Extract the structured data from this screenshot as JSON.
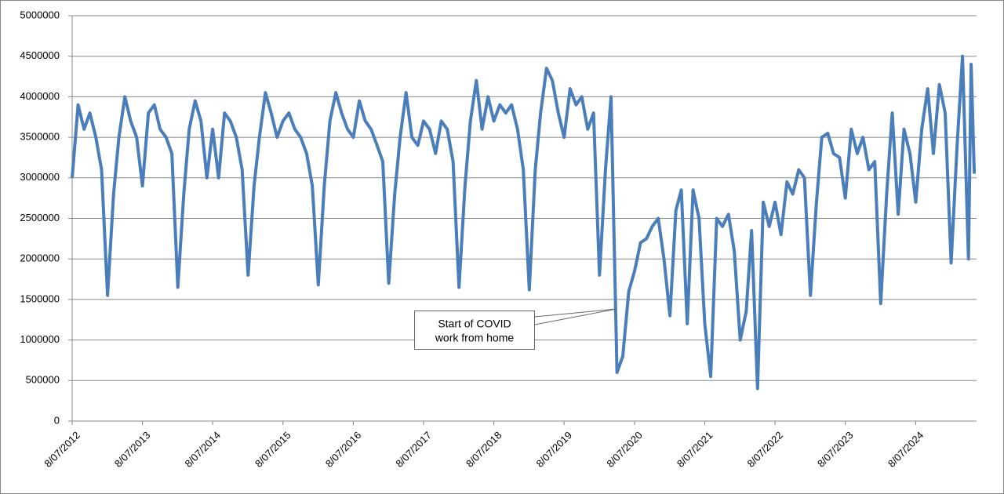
{
  "chart_data": {
    "type": "line",
    "x": [
      "2012-07-08",
      "2012-08-08",
      "2012-09-08",
      "2012-10-08",
      "2012-11-08",
      "2012-12-08",
      "2013-01-08",
      "2013-02-08",
      "2013-03-08",
      "2013-04-08",
      "2013-05-08",
      "2013-06-08",
      "2013-07-08",
      "2013-08-08",
      "2013-09-08",
      "2013-10-08",
      "2013-11-08",
      "2013-12-08",
      "2014-01-08",
      "2014-02-08",
      "2014-03-08",
      "2014-04-08",
      "2014-05-08",
      "2014-06-08",
      "2014-07-08",
      "2014-08-08",
      "2014-09-08",
      "2014-10-08",
      "2014-11-08",
      "2014-12-08",
      "2015-01-08",
      "2015-02-08",
      "2015-03-08",
      "2015-04-08",
      "2015-05-08",
      "2015-06-08",
      "2015-07-08",
      "2015-08-08",
      "2015-09-08",
      "2015-10-08",
      "2015-11-08",
      "2015-12-08",
      "2016-01-08",
      "2016-02-08",
      "2016-03-08",
      "2016-04-08",
      "2016-05-08",
      "2016-06-08",
      "2016-07-08",
      "2016-08-08",
      "2016-09-08",
      "2016-10-08",
      "2016-11-08",
      "2016-12-08",
      "2017-01-08",
      "2017-02-08",
      "2017-03-08",
      "2017-04-08",
      "2017-05-08",
      "2017-06-08",
      "2017-07-08",
      "2017-08-08",
      "2017-09-08",
      "2017-10-08",
      "2017-11-08",
      "2017-12-08",
      "2018-01-08",
      "2018-02-08",
      "2018-03-08",
      "2018-04-08",
      "2018-05-08",
      "2018-06-08",
      "2018-07-08",
      "2018-08-08",
      "2018-09-08",
      "2018-10-08",
      "2018-11-08",
      "2018-12-08",
      "2019-01-08",
      "2019-02-08",
      "2019-03-08",
      "2019-04-08",
      "2019-05-08",
      "2019-06-08",
      "2019-07-08",
      "2019-08-08",
      "2019-09-08",
      "2019-10-08",
      "2019-11-08",
      "2019-12-08",
      "2020-01-08",
      "2020-02-08",
      "2020-03-08",
      "2020-04-08",
      "2020-05-08",
      "2020-06-08",
      "2020-07-08",
      "2020-08-08",
      "2020-09-08",
      "2020-10-08",
      "2020-11-08",
      "2020-12-08",
      "2021-01-08",
      "2021-02-08",
      "2021-03-08",
      "2021-04-08",
      "2021-05-08",
      "2021-06-08",
      "2021-07-08",
      "2021-08-08",
      "2021-09-08",
      "2021-10-08",
      "2021-11-08",
      "2021-12-08",
      "2022-01-08",
      "2022-02-08",
      "2022-03-08",
      "2022-04-08",
      "2022-05-08",
      "2022-06-08",
      "2022-07-08",
      "2022-08-08",
      "2022-09-08",
      "2022-10-08",
      "2022-11-08",
      "2022-12-08",
      "2023-01-08",
      "2023-02-08",
      "2023-03-08",
      "2023-04-08",
      "2023-05-08",
      "2023-06-08",
      "2023-07-08",
      "2023-08-08",
      "2023-09-08",
      "2023-10-08",
      "2023-11-08",
      "2023-12-08",
      "2024-01-08",
      "2024-02-08",
      "2024-03-08",
      "2024-04-08",
      "2024-05-08",
      "2024-06-08",
      "2024-07-08",
      "2024-08-08",
      "2024-09-08",
      "2024-10-08",
      "2024-11-08",
      "2024-12-08",
      "2025-01-08",
      "2025-02-08",
      "2025-03-08",
      "2025-04-08",
      "2025-04-22",
      "2025-05-08"
    ],
    "series": [
      {
        "color": "#4a7ebb",
        "values": [
          3000000,
          3900000,
          3600000,
          3800000,
          3500000,
          3100000,
          1550000,
          2800000,
          3500000,
          4000000,
          3700000,
          3500000,
          2900000,
          3800000,
          3900000,
          3600000,
          3500000,
          3300000,
          1650000,
          2800000,
          3600000,
          3950000,
          3700000,
          3000000,
          3600000,
          3000000,
          3800000,
          3700000,
          3500000,
          3100000,
          1800000,
          2900000,
          3500000,
          4050000,
          3800000,
          3500000,
          3700000,
          3800000,
          3600000,
          3500000,
          3300000,
          2900000,
          1680000,
          2900000,
          3700000,
          4050000,
          3800000,
          3600000,
          3500000,
          3950000,
          3700000,
          3600000,
          3400000,
          3200000,
          1700000,
          2800000,
          3500000,
          4050000,
          3500000,
          3400000,
          3700000,
          3600000,
          3300000,
          3700000,
          3600000,
          3200000,
          1650000,
          2900000,
          3700000,
          4200000,
          3600000,
          4000000,
          3700000,
          3900000,
          3800000,
          3900000,
          3600000,
          3100000,
          1620000,
          3100000,
          3800000,
          4350000,
          4200000,
          3800000,
          3500000,
          4100000,
          3900000,
          4000000,
          3600000,
          3800000,
          1800000,
          3100000,
          4000000,
          600000,
          800000,
          1600000,
          1850000,
          2200000,
          2250000,
          2400000,
          2500000,
          2000000,
          1300000,
          2600000,
          2850000,
          1200000,
          2850000,
          2500000,
          1200000,
          550000,
          2500000,
          2400000,
          2550000,
          2100000,
          1000000,
          1350000,
          2350000,
          400000,
          2700000,
          2400000,
          2700000,
          2300000,
          2950000,
          2800000,
          3100000,
          3000000,
          1550000,
          2700000,
          3500000,
          3550000,
          3300000,
          3250000,
          2750000,
          3600000,
          3300000,
          3500000,
          3100000,
          3200000,
          1450000,
          2800000,
          3800000,
          2550000,
          3600000,
          3300000,
          2700000,
          3600000,
          4100000,
          3300000,
          4150000,
          3800000,
          1950000,
          3400000,
          4500000,
          2000000,
          4400000,
          3050000
        ]
      }
    ],
    "xlim": [
      "2012-07-08",
      "2025-05-20"
    ],
    "xticks": [
      {
        "value": "2012-07-08",
        "label": "8/07/2012"
      },
      {
        "value": "2013-07-08",
        "label": "8/07/2013"
      },
      {
        "value": "2014-07-08",
        "label": "8/07/2014"
      },
      {
        "value": "2015-07-08",
        "label": "8/07/2015"
      },
      {
        "value": "2016-07-08",
        "label": "8/07/2016"
      },
      {
        "value": "2017-07-08",
        "label": "8/07/2017"
      },
      {
        "value": "2018-07-08",
        "label": "8/07/2018"
      },
      {
        "value": "2019-07-08",
        "label": "8/07/2019"
      },
      {
        "value": "2020-07-08",
        "label": "8/07/2020"
      },
      {
        "value": "2021-07-08",
        "label": "8/07/2021"
      },
      {
        "value": "2022-07-08",
        "label": "8/07/2022"
      },
      {
        "value": "2023-07-08",
        "label": "8/07/2023"
      },
      {
        "value": "2024-07-08",
        "label": "8/07/2024"
      }
    ],
    "ylim": [
      0,
      5000000
    ],
    "yticks": [
      0,
      500000,
      1000000,
      1500000,
      2000000,
      2500000,
      3000000,
      3500000,
      4000000,
      4500000,
      5000000
    ],
    "grid": true,
    "annotation": [
      "Start of COVID",
      "work from home"
    ]
  }
}
